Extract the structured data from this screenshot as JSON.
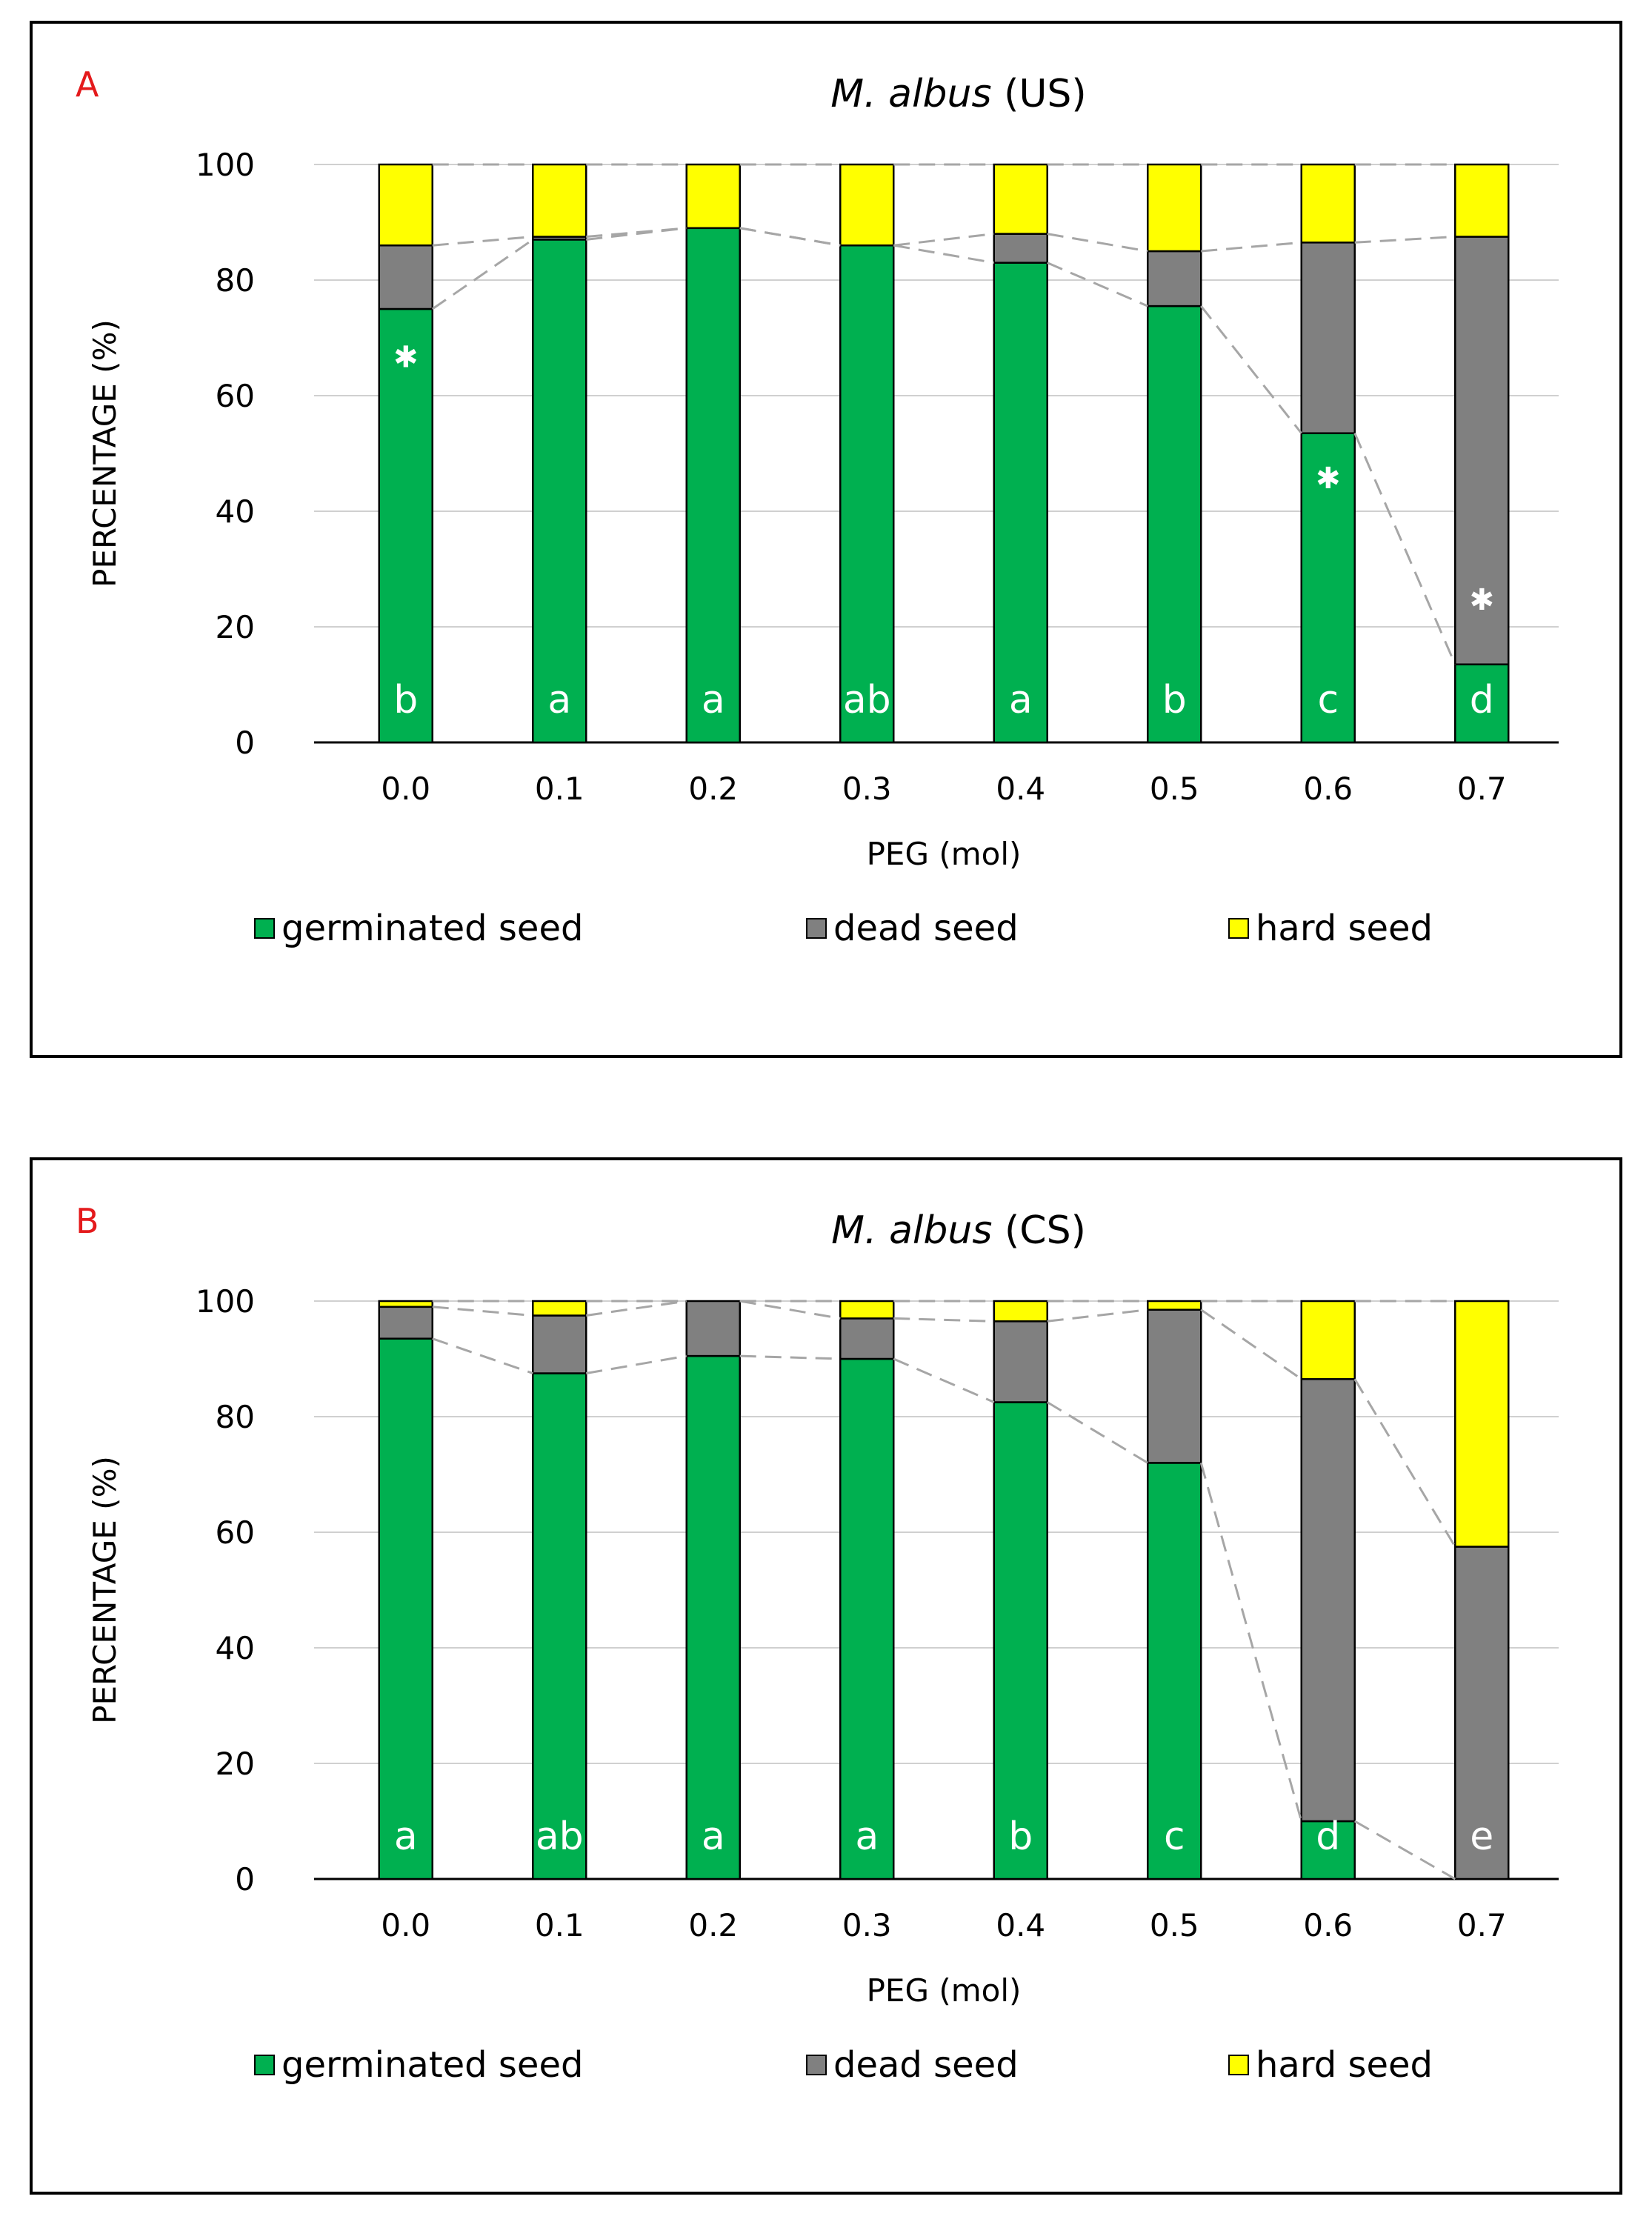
{
  "colors": {
    "germinated": "#00b050",
    "dead": "#808080",
    "hard": "#ffff00",
    "panel_letter": "#e41a1c",
    "significance_text": "#ffffff",
    "grid": "#d0d0d0",
    "connector": "#a6a6a6"
  },
  "chart_data": [
    {
      "type": "bar",
      "stacked": true,
      "panel": "A",
      "title": {
        "species": "M. albus",
        "suffix": "(US)"
      },
      "xlabel": "PEG (mol)",
      "ylabel": "PERCENTAGE (%)",
      "ylim": [
        0,
        100
      ],
      "yticks": [
        "0",
        "20",
        "40",
        "60",
        "80",
        "100"
      ],
      "categories": [
        "0.0",
        "0.1",
        "0.2",
        "0.3",
        "0.4",
        "0.5",
        "0.6",
        "0.7"
      ],
      "series": [
        {
          "name": "germinated seed",
          "values": [
            75,
            87,
            89,
            86,
            83,
            75.5,
            53.5,
            13.5
          ]
        },
        {
          "name": "dead seed",
          "values": [
            11,
            0.5,
            0,
            0,
            5,
            9.5,
            33,
            74
          ]
        },
        {
          "name": "hard seed",
          "values": [
            14,
            12.5,
            11,
            14,
            12,
            15,
            13.5,
            12.5
          ]
        }
      ],
      "significance_letters": [
        "b",
        "a",
        "a",
        "ab",
        "a",
        "b",
        "c",
        "d"
      ],
      "asterisk_values": [
        67,
        null,
        null,
        null,
        null,
        null,
        46,
        25
      ],
      "asterisk_symbol": "✱",
      "grid": true,
      "legend_position": "bottom"
    },
    {
      "type": "bar",
      "stacked": true,
      "panel": "B",
      "title": {
        "species": "M. albus",
        "suffix": "(CS)"
      },
      "xlabel": "PEG (mol)",
      "ylabel": "PERCENTAGE (%)",
      "ylim": [
        0,
        100
      ],
      "yticks": [
        "0",
        "20",
        "40",
        "60",
        "80",
        "100"
      ],
      "categories": [
        "0.0",
        "0.1",
        "0.2",
        "0.3",
        "0.4",
        "0.5",
        "0.6",
        "0.7"
      ],
      "series": [
        {
          "name": "germinated seed",
          "values": [
            93.5,
            87.5,
            90.5,
            90,
            82.5,
            72,
            10,
            0
          ]
        },
        {
          "name": "dead seed",
          "values": [
            5.5,
            10,
            9.5,
            7,
            14,
            26.5,
            76.5,
            57.5
          ]
        },
        {
          "name": "hard seed",
          "values": [
            1,
            2.5,
            0,
            3,
            3.5,
            1.5,
            13.5,
            42.5
          ]
        }
      ],
      "significance_letters": [
        "a",
        "ab",
        "a",
        "a",
        "b",
        "c",
        "d",
        "e"
      ],
      "asterisk_values": [
        null,
        null,
        null,
        null,
        null,
        null,
        null,
        null
      ],
      "asterisk_symbol": "✱",
      "grid": true,
      "legend_position": "bottom"
    }
  ]
}
